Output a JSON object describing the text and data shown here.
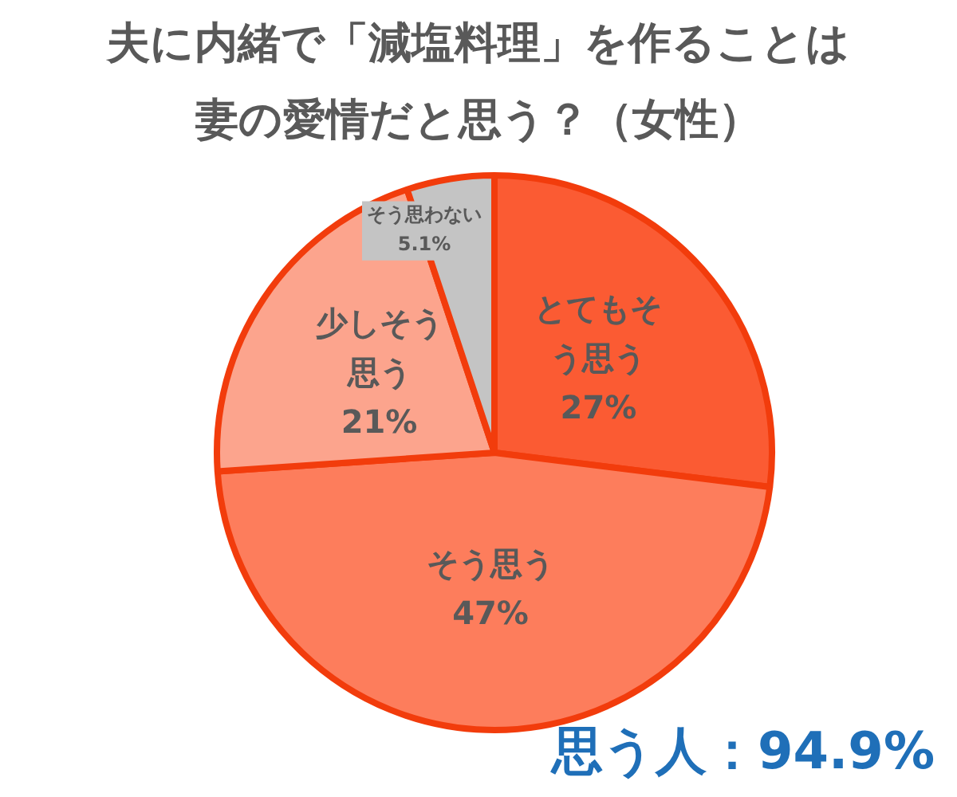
{
  "chart_data": {
    "type": "pie",
    "title": "夫に内緒で「減塩料理」を作ることは妻の愛情だと思う？（女性）",
    "categories": [
      "とてもそう思う",
      "そう思う",
      "少しそう思う",
      "そう思わない"
    ],
    "values": [
      27,
      47,
      21,
      5.1
    ],
    "value_labels": [
      "27%",
      "47%",
      "21%",
      "5.1%"
    ],
    "colors": [
      "#fb5b33",
      "#fd7d5c",
      "#fca48d",
      "#c4c4c4"
    ],
    "legend": false,
    "annotations": [
      "思う人：94.9%"
    ]
  }
}
